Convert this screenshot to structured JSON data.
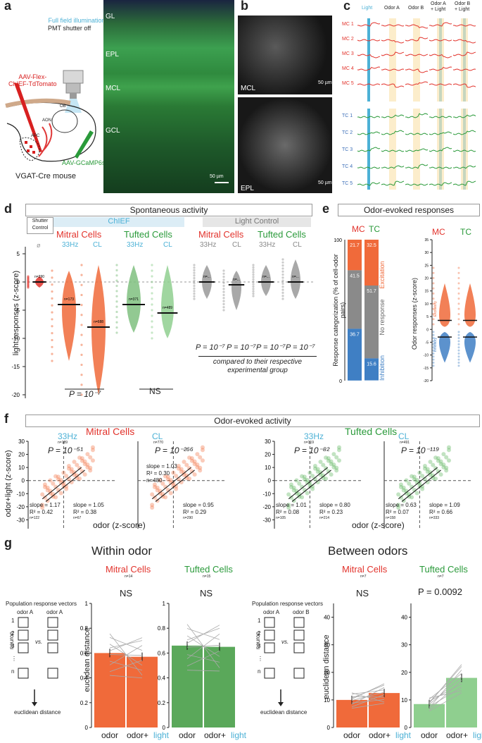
{
  "panel_labels": {
    "a": "a",
    "b": "b",
    "c": "c",
    "d": "d",
    "e": "e",
    "f": "f",
    "g": "g"
  },
  "colors": {
    "mitral": "#e2332c",
    "tufted": "#2a9a3a",
    "light": "#4cb1d6",
    "orange": "#f06a3a",
    "blue": "#3f7fc4",
    "green": "#3f9f48"
  },
  "panel_a": {
    "illumination": "Full field illumination",
    "shutter": "PMT shutter off",
    "virus_red": "AAV-Flex-\nChIEF-TdTomato",
    "virus_green": "AAV-GCaMP6s",
    "ob": "OB",
    "aon": "AON",
    "apc": "APC",
    "mouse": "VGAT-Cre mouse",
    "layers": [
      "GL",
      "EPL",
      "MCL",
      "GCL"
    ],
    "scale": "50 µm"
  },
  "panel_b": {
    "top_label": "MCL",
    "bottom_label": "EPL",
    "scale": "50 µm"
  },
  "panel_c": {
    "columns": [
      "Light",
      "Odor A",
      "Odor B",
      "Odor A\n+ Light",
      "Odor B\n+ Light"
    ],
    "mc_rows": [
      "MC 1",
      "MC 2",
      "MC 3",
      "MC 4",
      "MC 5"
    ],
    "tc_rows": [
      "TC 1",
      "TC 2",
      "TC 3",
      "TC 4",
      "TC 5"
    ]
  },
  "panel_d": {
    "header": "Spontaneous activity",
    "shutter_control": "Shutter\nControl",
    "chief": "ChIEF",
    "light_control": "Light Control",
    "mitral": "Mitral Cells",
    "tufted": "Tufted Cells",
    "conds": [
      "33Hz",
      "CL"
    ],
    "empty": "ø",
    "ylabel": "light responses (z-score)",
    "yticks": [
      "5",
      "0",
      "-5",
      "-10",
      "-15",
      "-20",
      "-25"
    ],
    "n_labels": [
      "n=390",
      "n=173",
      "n=688",
      "n=371",
      "n=489",
      "n=...",
      "n=...",
      "n=...",
      "n=..."
    ],
    "p_bottom_mitral": "P = 10⁻⁷",
    "ns": "NS",
    "p_control": [
      "P = 10⁻⁷",
      "P = 10⁻⁷",
      "P = 10⁻⁷",
      "P = 10⁻⁷"
    ],
    "compared": "compared to their respective\nexperimental group"
  },
  "panel_e": {
    "header": "Odor-evoked responses",
    "mc": "MC",
    "tc": "TC",
    "ylabel": "Response categorization (% of cell-odor pairs)",
    "mc_vals": {
      "exc": "21.7",
      "none": "41.5",
      "inh": "36.7",
      "n_exc": "n=357",
      "n_inh": "n=602"
    },
    "tc_vals": {
      "exc": "32.5",
      "none": "51.7",
      "inh": "15.6",
      "n_exc": "n=547",
      "n_inh": "n=265"
    },
    "cat_exc": "Excitation",
    "cat_none": "No response",
    "cat_inh": "Inhibition",
    "ticks_left": [
      "100",
      "0"
    ],
    "ylabel2": "Odor responses (z-score)",
    "yticks2": [
      "35",
      "30",
      "25",
      "20",
      "15",
      "10",
      "5",
      "0",
      "-5",
      "-10",
      "-15",
      "-20"
    ],
    "excitatory": "Excitatory",
    "inhibitory": "Inhibitory"
  },
  "panel_f": {
    "header": "Odor-evoked activity",
    "mitral": "Mitral Cells",
    "tufted": "Tufted Cells",
    "ylabel": "odor+light (z-score)",
    "xlabel": "odor (z-score)",
    "plots": [
      {
        "cond": "33Hz",
        "n": "n=189",
        "p": "P = 10⁻⁵¹",
        "sl": "slope = 1.17",
        "r2l": "R² = 0.42",
        "nl": "n=122",
        "sr": "slope = 1.05",
        "r2r": "R² = 0.38",
        "nr": "n=67",
        "mid": ""
      },
      {
        "cond": "CL",
        "n": "n=770",
        "p": "P = 10⁻²⁶⁶",
        "sl": "",
        "r2l": "",
        "nl": "",
        "sr": "slope = 0.95",
        "r2r": "R² = 0.29",
        "nr": "n=290",
        "mid": "slope = 1.03\nR² = 0.30\nn=480"
      },
      {
        "cond": "33Hz",
        "n": "n=319",
        "p": "P = 10⁻⁸²",
        "sl": "slope = 1.01",
        "r2l": "R² = 0.08",
        "nl": "n=105",
        "sr": "slope = 0.80",
        "r2r": "R² = 0.23",
        "nr": "n=214",
        "mid": ""
      },
      {
        "cond": "CL",
        "n": "n=491",
        "p": "P = 10⁻¹¹⁹",
        "sl": "slope = 0.63",
        "r2l": "R² = 0.07",
        "nl": "n=158",
        "sr": "slope = 1.09",
        "r2r": "R² = 0.66",
        "nr": "n=333",
        "mid": ""
      }
    ],
    "yticks": [
      "30",
      "20",
      "10",
      "0",
      "-10",
      "-20",
      "-30",
      "-40"
    ],
    "xticks": [
      "-20",
      "0",
      "20"
    ]
  },
  "panel_g": {
    "within": "Within  odor",
    "between": "Between odors",
    "pop": "Population response vectors",
    "odorA": "odor A",
    "odorB": "odor B",
    "vs": "vs.",
    "neuron": "neuron",
    "rows": [
      "1",
      "2",
      "3",
      "⋮",
      "n"
    ],
    "euclid": "euclidean distance",
    "ylabel": "euclidean distance",
    "mitral": "Mitral Cells",
    "tufted": "Tufted Cells",
    "n_w_m": "n=14",
    "n_w_t": "n=15",
    "n_b_m": "n=7",
    "n_b_t": "n=7",
    "ns": "NS",
    "p_between": "P = 0.0092",
    "xodor": "odor",
    "xodorlight_a": "odor+",
    "xodorlight_b": "light",
    "yticks_w": [
      "1",
      "0.8",
      "0.6",
      "0.4",
      "0.2",
      "0"
    ],
    "yticks_b": [
      "40",
      "30",
      "20",
      "10",
      "0"
    ]
  },
  "chart_data": [
    {
      "type": "bar",
      "title": "Within odor — Mitral Cells",
      "categories": [
        "odor",
        "odor+light"
      ],
      "values": [
        0.6,
        0.57
      ],
      "ylabel": "euclidean distance",
      "ylim": [
        0,
        1
      ]
    },
    {
      "type": "bar",
      "title": "Within odor — Tufted Cells",
      "categories": [
        "odor",
        "odor+light"
      ],
      "values": [
        0.66,
        0.65
      ],
      "ylabel": "euclidean distance",
      "ylim": [
        0,
        1
      ]
    },
    {
      "type": "bar",
      "title": "Between odors — Mitral Cells",
      "categories": [
        "odor",
        "odor+light"
      ],
      "values": [
        10,
        12.5
      ],
      "ylabel": "euclidean distance",
      "ylim": [
        0,
        45
      ]
    },
    {
      "type": "bar",
      "title": "Between odors — Tufted Cells",
      "categories": [
        "odor",
        "odor+light"
      ],
      "values": [
        8.5,
        18
      ],
      "ylabel": "euclidean distance",
      "ylim": [
        0,
        45
      ]
    },
    {
      "type": "bar",
      "title": "Response categorization",
      "categories": [
        "MC",
        "TC"
      ],
      "series": [
        {
          "name": "Excitation",
          "values": [
            21.7,
            32.5
          ]
        },
        {
          "name": "No response",
          "values": [
            41.5,
            51.7
          ]
        },
        {
          "name": "Inhibition",
          "values": [
            36.7,
            15.6
          ]
        }
      ],
      "ylim": [
        0,
        100
      ]
    }
  ]
}
